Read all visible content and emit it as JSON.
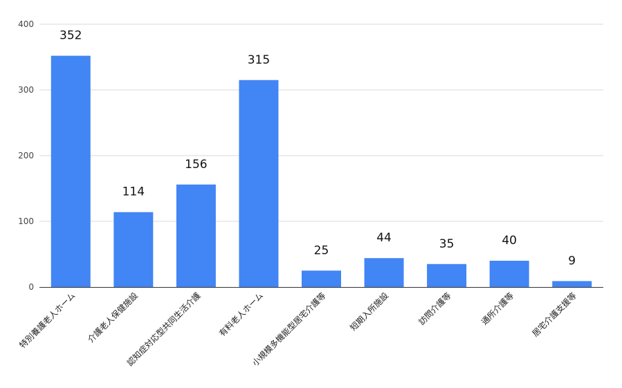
{
  "chart_data": {
    "type": "bar",
    "title": "",
    "xlabel": "",
    "ylabel": "",
    "categories": [
      "特別養護老人ホーム",
      "介護老人保健施設",
      "認知症対応型共同生活介護",
      "有料老人ホーム",
      "小規模多機能型居宅介護等",
      "短期入所施設",
      "訪問介護等",
      "通所介護等",
      "居宅介護支援等"
    ],
    "values": [
      352,
      114,
      156,
      315,
      25,
      44,
      35,
      40,
      9
    ],
    "data_labels": [
      "352",
      "114",
      "156",
      "315",
      "25",
      "44",
      "35",
      "40",
      "9"
    ],
    "ylim": [
      0,
      400
    ],
    "yticks": [
      0,
      100,
      200,
      300,
      400
    ],
    "grid": true,
    "legend": "none",
    "colors": {
      "bar": "#4285f4",
      "grid": "#d9d9d9",
      "axis": "#333333"
    }
  }
}
